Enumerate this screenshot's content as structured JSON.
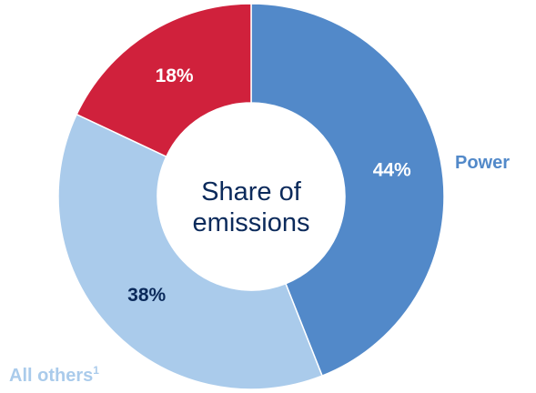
{
  "chart_data": {
    "type": "donut",
    "center_title": [
      "Share of",
      "emissions"
    ],
    "slices": [
      {
        "label": "Power",
        "value": 44,
        "value_label": "44%",
        "color": "#5289c9",
        "text_color": "#ffffff",
        "external_label_color": "#5289c9"
      },
      {
        "label": "All others",
        "footnote": "1",
        "value": 38,
        "value_label": "38%",
        "color": "#aacbeb",
        "text_color": "#0b2a5b",
        "external_label_color": "#aacbeb"
      },
      {
        "label": "",
        "value": 18,
        "value_label": "18%",
        "color": "#d0213c",
        "text_color": "#ffffff"
      }
    ]
  }
}
